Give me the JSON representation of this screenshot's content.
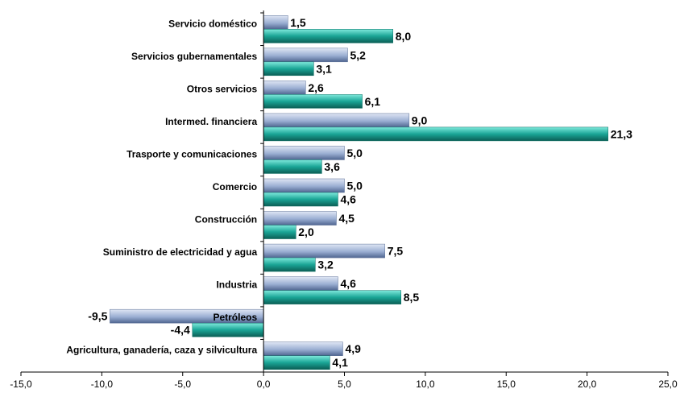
{
  "chart_data": {
    "type": "bar",
    "orientation": "horizontal",
    "categories": [
      "Servicio doméstico",
      "Servicios gubernamentales",
      "Otros servicios",
      "Intermed. financiera",
      "Trasporte y comunicaciones",
      "Comercio",
      "Construcción",
      "Suministro de electricidad y agua",
      "Industria",
      "Petróleos",
      "Agricultura, ganadería, caza y silvicultura"
    ],
    "series": [
      {
        "values": [
          1.5,
          5.2,
          2.6,
          9.0,
          5.0,
          5.0,
          4.5,
          7.5,
          4.6,
          -9.5,
          4.9
        ],
        "labels": [
          "1,5",
          "5,2",
          "2,6",
          "9,0",
          "5,0",
          "5,0",
          "4,5",
          "7,5",
          "4,6",
          "-9,5",
          "4,9"
        ],
        "color": "#9aaed2"
      },
      {
        "values": [
          8.0,
          3.1,
          6.1,
          21.3,
          3.6,
          4.6,
          2.0,
          3.2,
          8.5,
          -4.4,
          4.1
        ],
        "labels": [
          "8,0",
          "3,1",
          "6,1",
          "21,3",
          "3,6",
          "4,6",
          "2,0",
          "3,2",
          "8,5",
          "-4,4",
          "4,1"
        ],
        "color": "#1aa596"
      }
    ],
    "xlim": [
      -15,
      25
    ],
    "xticks": [
      -15,
      -10,
      -5,
      0,
      5,
      10,
      15,
      20,
      25
    ],
    "xtick_labels": [
      "-15,0",
      "-10,0",
      "-5,0",
      "0,0",
      "5,0",
      "10,0",
      "15,0",
      "20,0",
      "25,0"
    ],
    "title": "",
    "xlabel": "",
    "ylabel": "",
    "grid": false,
    "legend": "none"
  }
}
